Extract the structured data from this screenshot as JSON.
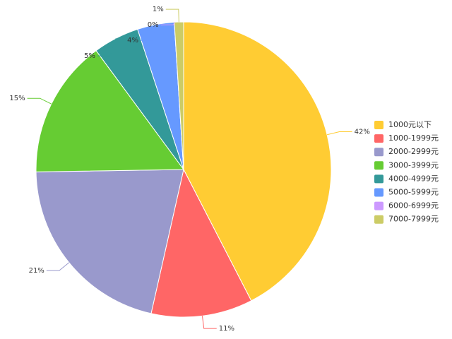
{
  "chart_data": {
    "type": "pie",
    "categories": [
      "1000元以下",
      "1000-1999元",
      "2000-2999元",
      "3000-3999元",
      "4000-4999元",
      "5000-5999元",
      "6000-6999元",
      "7000-7999元"
    ],
    "values": [
      42,
      11,
      21,
      15,
      5,
      4,
      0,
      1
    ],
    "value_labels": [
      "42%",
      "11%",
      "21%",
      "15%",
      "5%",
      "4%",
      "0%",
      "1%"
    ],
    "colors": [
      "#ffcc33",
      "#ff6666",
      "#9999cc",
      "#66cc33",
      "#339999",
      "#6699ff",
      "#cc99ff",
      "#cccc66"
    ],
    "legend": "right"
  }
}
